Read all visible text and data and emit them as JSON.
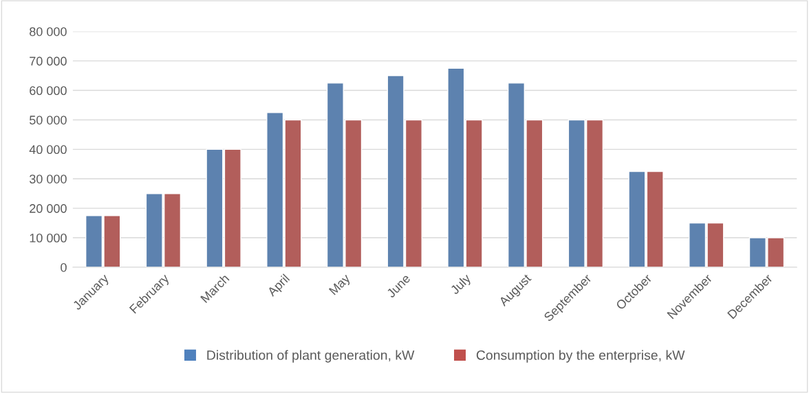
{
  "chart_data": {
    "type": "bar",
    "categories": [
      "January",
      "February",
      "March",
      "April",
      "May",
      "June",
      "July",
      "August",
      "September",
      "October",
      "November",
      "December"
    ],
    "series": [
      {
        "name": "Distribution of plant generation, kW",
        "color": "#4f81bd",
        "values": [
          17500,
          25000,
          40000,
          52500,
          62500,
          65000,
          67500,
          62500,
          50000,
          32500,
          15000,
          10000
        ]
      },
      {
        "name": "Consumption by the enterprise, kW",
        "color": "#c0504d",
        "values": [
          17500,
          25000,
          40000,
          50000,
          50000,
          50000,
          50000,
          50000,
          50000,
          32500,
          15000,
          10000
        ]
      }
    ],
    "ylim": [
      0,
      80000
    ],
    "yticks": [
      0,
      {
        "value": 10000,
        "label": "10 000"
      },
      {
        "value": 20000,
        "label": "20 000"
      },
      {
        "value": 30000,
        "label": "30 000"
      },
      {
        "value": 40000,
        "label": "40 000"
      },
      {
        "value": 50000,
        "label": "50 000"
      },
      {
        "value": 60000,
        "label": "60 000"
      },
      {
        "value": 70000,
        "label": "70 000"
      },
      {
        "value": 80000,
        "label": "80 000"
      }
    ],
    "grid": "y",
    "legend": "bottom"
  }
}
